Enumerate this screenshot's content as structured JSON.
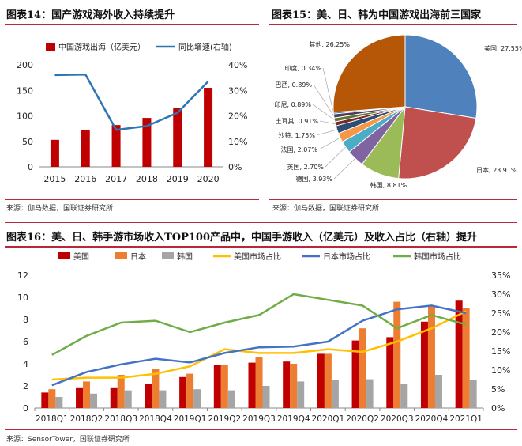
{
  "chart_data": [
    {
      "type": "bar",
      "heading": "图表14：国产游戏海外收入持续提升",
      "source": "来源：伽马数据，国联证券研究所",
      "categories": [
        "2015",
        "2016",
        "2017",
        "2018",
        "2019",
        "2020"
      ],
      "series": [
        {
          "name": "中国游戏出海（亿美元）",
          "kind": "bar",
          "axis": "left",
          "color": "#c00000",
          "values": [
            53,
            72,
            82,
            96,
            116,
            155
          ]
        },
        {
          "name": "同比增速(右轴)",
          "kind": "line",
          "axis": "right",
          "color": "#2e75b6",
          "values": [
            0.36,
            0.362,
            0.145,
            0.16,
            0.212,
            0.335
          ]
        }
      ],
      "ylim": [
        0,
        200
      ],
      "yticks": [
        "0",
        "50",
        "100",
        "150",
        "200"
      ],
      "y2lim": [
        0,
        0.4
      ],
      "y2ticks": [
        "0%",
        "10%",
        "20%",
        "30%",
        "40%"
      ]
    },
    {
      "type": "pie",
      "heading": "图表15：美、日、韩为中国游戏出海前三国家",
      "source": "来源：伽马数据，国联证券研究所",
      "slices": [
        {
          "label": "美国, 27.55%",
          "value": 27.55,
          "color": "#4f81bd"
        },
        {
          "label": "日本, 23.91%",
          "value": 23.91,
          "color": "#c0504d"
        },
        {
          "label": "韩国, 8.81%",
          "value": 8.81,
          "color": "#9bbb59"
        },
        {
          "label": "德国, 3.93%",
          "value": 3.93,
          "color": "#8064a2"
        },
        {
          "label": "英国, 2.70%",
          "value": 2.7,
          "color": "#4bacc6"
        },
        {
          "label": "法国, 2.07%",
          "value": 2.07,
          "color": "#f79646"
        },
        {
          "label": "沙特, 1.75%",
          "value": 1.75,
          "color": "#2c4d75"
        },
        {
          "label": "土耳其, 0.91%",
          "value": 0.91,
          "color": "#772c2a"
        },
        {
          "label": "印尼, 0.89%",
          "value": 0.89,
          "color": "#5f7530"
        },
        {
          "label": "巴西, 0.89%",
          "value": 0.89,
          "color": "#4d3b62"
        },
        {
          "label": "印度, 0.34%",
          "value": 0.34,
          "color": "#276a7c"
        },
        {
          "label": "其他, 26.25%",
          "value": 26.25,
          "color": "#b65708"
        }
      ]
    },
    {
      "type": "bar",
      "heading": "图表16：美、日、韩手游市场收入TOP100产品中，中国手游收入（亿美元）及收入占比（右轴）提升",
      "source": "来源：SensorTower，国联证券研究所",
      "categories": [
        "2018Q1",
        "2018Q2",
        "2018Q3",
        "2018Q4",
        "2019Q1",
        "2019Q2",
        "2019Q3",
        "2019Q4",
        "2020Q1",
        "2020Q2",
        "2020Q3",
        "2020Q4",
        "2021Q1"
      ],
      "series": [
        {
          "name": "美国",
          "kind": "bar",
          "axis": "left",
          "color": "#c00000",
          "values": [
            1.4,
            1.8,
            1.8,
            2.2,
            2.8,
            3.9,
            4.1,
            4.2,
            4.9,
            6.1,
            6.4,
            7.8,
            9.7
          ]
        },
        {
          "name": "日本",
          "kind": "bar",
          "axis": "left",
          "color": "#ed7d31",
          "values": [
            1.7,
            2.4,
            3.0,
            3.5,
            3.1,
            3.9,
            4.6,
            4.0,
            4.9,
            7.2,
            9.6,
            9.2,
            9.0
          ]
        },
        {
          "name": "韩国",
          "kind": "bar",
          "axis": "left",
          "color": "#a5a5a5",
          "values": [
            1.0,
            1.3,
            1.6,
            1.6,
            1.7,
            1.6,
            2.0,
            2.4,
            2.5,
            2.6,
            2.2,
            3.0,
            2.5
          ]
        },
        {
          "name": "美国市场占比",
          "kind": "line",
          "axis": "right",
          "color": "#ffc000",
          "values": [
            0.075,
            0.08,
            0.08,
            0.09,
            0.11,
            0.155,
            0.145,
            0.145,
            0.155,
            0.148,
            0.175,
            0.21,
            0.255
          ]
        },
        {
          "name": "日本市场占比",
          "kind": "line",
          "axis": "right",
          "color": "#4472c4",
          "values": [
            0.06,
            0.095,
            0.115,
            0.13,
            0.12,
            0.145,
            0.16,
            0.162,
            0.175,
            0.23,
            0.26,
            0.27,
            0.25
          ]
        },
        {
          "name": "韩国市场占比",
          "kind": "line",
          "axis": "right",
          "color": "#70ad47",
          "values": [
            0.14,
            0.19,
            0.225,
            0.23,
            0.2,
            0.225,
            0.245,
            0.3,
            0.285,
            0.27,
            0.21,
            0.245,
            0.22
          ]
        }
      ],
      "ylim": [
        0,
        12
      ],
      "yticks": [
        "0",
        "2",
        "4",
        "6",
        "8",
        "10",
        "12"
      ],
      "y2lim": [
        0,
        0.35
      ],
      "y2ticks": [
        "0%",
        "5%",
        "10%",
        "15%",
        "20%",
        "25%",
        "30%",
        "35%"
      ]
    }
  ]
}
